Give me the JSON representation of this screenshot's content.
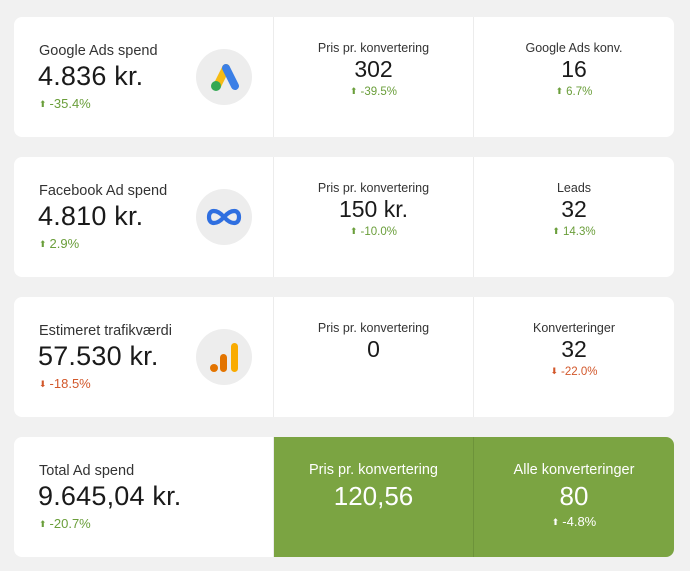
{
  "rows": [
    {
      "main": {
        "label": "Google Ads spend",
        "value": "4.836 kr.",
        "delta": "-35.4%",
        "delta_dir": "up",
        "icon": "google-ads-logo-icon"
      },
      "kpi1": {
        "label": "Pris pr. konvertering",
        "value": "302",
        "delta": "-39.5%",
        "delta_dir": "up"
      },
      "kpi2": {
        "label": "Google Ads konv.",
        "value": "16",
        "delta": "6.7%",
        "delta_dir": "up"
      }
    },
    {
      "main": {
        "label": "Facebook Ad spend",
        "value": "4.810 kr.",
        "delta": "2.9%",
        "delta_dir": "up",
        "icon": "meta-logo-icon"
      },
      "kpi1": {
        "label": "Pris pr. konvertering",
        "value": "150 kr.",
        "delta": "-10.0%",
        "delta_dir": "up"
      },
      "kpi2": {
        "label": "Leads",
        "value": "32",
        "delta": "14.3%",
        "delta_dir": "up"
      }
    },
    {
      "main": {
        "label": "Estimeret trafikværdi",
        "value": "57.530 kr.",
        "delta": "-18.5%",
        "delta_dir": "down",
        "icon": "google-analytics-logo-icon"
      },
      "kpi1": {
        "label": "Pris pr. konvertering",
        "value": "0",
        "delta": "",
        "delta_dir": ""
      },
      "kpi2": {
        "label": "Konverteringer",
        "value": "32",
        "delta": "-22.0%",
        "delta_dir": "down"
      }
    },
    {
      "main": {
        "label": "Total Ad spend",
        "value": "9.645,04 kr.",
        "delta": "-20.7%",
        "delta_dir": "up"
      },
      "kpi1": {
        "label": "Pris pr. konvertering",
        "value": "120,56",
        "delta": "",
        "delta_dir": ""
      },
      "kpi2": {
        "label": "Alle konverteringer",
        "value": "80",
        "delta": "-4.8%",
        "delta_dir": "up"
      }
    }
  ],
  "colors": {
    "positive": "#6a9e3a",
    "negative": "#d2572a",
    "highlight": "#7ba442"
  }
}
